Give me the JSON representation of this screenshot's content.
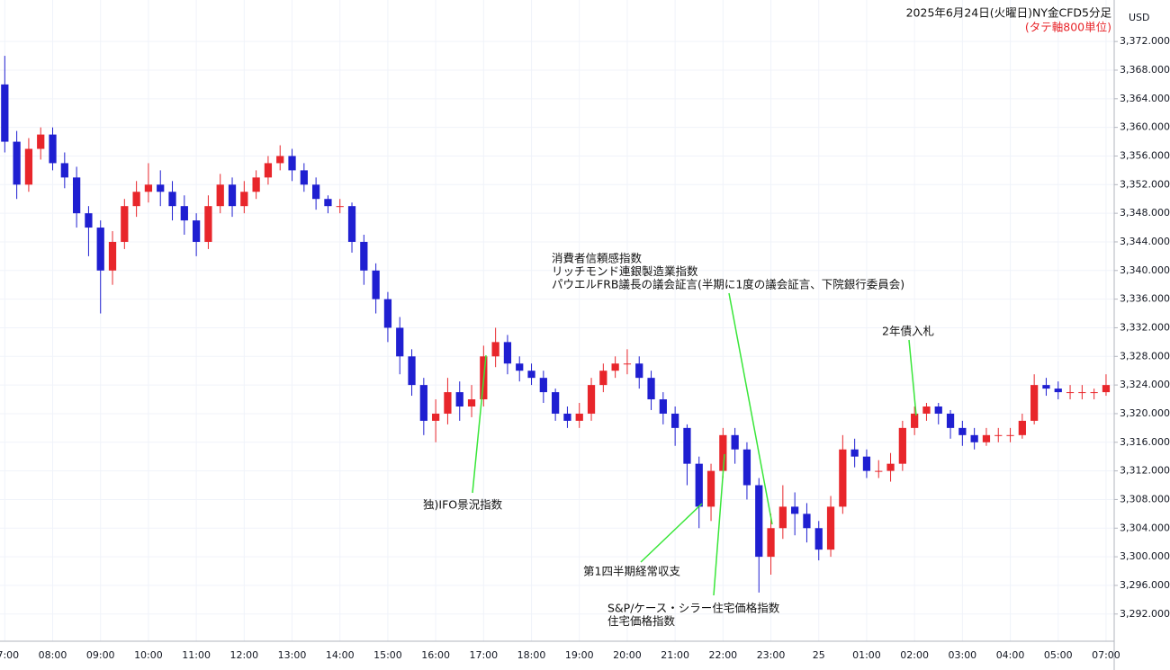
{
  "chart_data": {
    "type": "candlestick",
    "title": "2025年6月24日(火曜日)NY金CFD5分足",
    "subtitle": "(タテ軸800単位)",
    "currency": "USD",
    "up_color": "#e8262b",
    "down_color": "#1f1fd1",
    "annotation_color": "#39e639",
    "grid": true,
    "xlim": [
      -0.1,
      23.17
    ],
    "ylim": [
      3288.2,
      3377.8
    ],
    "xticks": [
      {
        "value": 0,
        "label": "07:00"
      },
      {
        "value": 1,
        "label": "08:00"
      },
      {
        "value": 2,
        "label": "09:00"
      },
      {
        "value": 3,
        "label": "10:00"
      },
      {
        "value": 4,
        "label": "11:00"
      },
      {
        "value": 5,
        "label": "12:00"
      },
      {
        "value": 6,
        "label": "13:00"
      },
      {
        "value": 7,
        "label": "14:00"
      },
      {
        "value": 8,
        "label": "15:00"
      },
      {
        "value": 9,
        "label": "16:00"
      },
      {
        "value": 10,
        "label": "17:00"
      },
      {
        "value": 11,
        "label": "18:00"
      },
      {
        "value": 12,
        "label": "19:00"
      },
      {
        "value": 13,
        "label": "20:00"
      },
      {
        "value": 14,
        "label": "21:00"
      },
      {
        "value": 15,
        "label": "22:00"
      },
      {
        "value": 16,
        "label": "23:00"
      },
      {
        "value": 17,
        "label": "25"
      },
      {
        "value": 18,
        "label": "01:00"
      },
      {
        "value": 19,
        "label": "02:00"
      },
      {
        "value": 20,
        "label": "03:00"
      },
      {
        "value": 21,
        "label": "04:00"
      },
      {
        "value": 22,
        "label": "05:00"
      },
      {
        "value": 23,
        "label": "07:00"
      }
    ],
    "yticks": [
      {
        "value": 3292,
        "label": "3,292.000"
      },
      {
        "value": 3296,
        "label": "3,296.000"
      },
      {
        "value": 3300,
        "label": "3,300.000"
      },
      {
        "value": 3304,
        "label": "3,304.000"
      },
      {
        "value": 3308,
        "label": "3,308.000"
      },
      {
        "value": 3312,
        "label": "3,312.000"
      },
      {
        "value": 3316,
        "label": "3,316.000"
      },
      {
        "value": 3320,
        "label": "3,320.000"
      },
      {
        "value": 3324,
        "label": "3,324.000"
      },
      {
        "value": 3328,
        "label": "3,328.000"
      },
      {
        "value": 3332,
        "label": "3,332.000"
      },
      {
        "value": 3336,
        "label": "3,336.000"
      },
      {
        "value": 3340,
        "label": "3,340.000"
      },
      {
        "value": 3344,
        "label": "3,344.000"
      },
      {
        "value": 3348,
        "label": "3,348.000"
      },
      {
        "value": 3352,
        "label": "3,352.000"
      },
      {
        "value": 3356,
        "label": "3,356.000"
      },
      {
        "value": 3360,
        "label": "3,360.000"
      },
      {
        "value": 3364,
        "label": "3,364.000"
      },
      {
        "value": 3368,
        "label": "3,368.000"
      },
      {
        "value": 3372,
        "label": "3,372.000"
      }
    ],
    "x": [
      0,
      0.25,
      0.5,
      0.75,
      1,
      1.25,
      1.5,
      1.75,
      2,
      2.25,
      2.5,
      2.75,
      3,
      3.25,
      3.5,
      3.75,
      4,
      4.25,
      4.5,
      4.75,
      5,
      5.25,
      5.5,
      5.75,
      6,
      6.25,
      6.5,
      6.75,
      7,
      7.25,
      7.5,
      7.75,
      8,
      8.25,
      8.5,
      8.75,
      9,
      9.25,
      9.5,
      9.75,
      10,
      10.25,
      10.5,
      10.75,
      11,
      11.25,
      11.5,
      11.75,
      12,
      12.25,
      12.5,
      12.75,
      13,
      13.25,
      13.5,
      13.75,
      14,
      14.25,
      14.5,
      14.75,
      15,
      15.25,
      15.5,
      15.75,
      16,
      16.25,
      16.5,
      16.75,
      17,
      17.25,
      17.5,
      17.75,
      18,
      18.25,
      18.5,
      18.75,
      19,
      19.25,
      19.5,
      19.75,
      20,
      20.25,
      20.5,
      20.75,
      21,
      21.25,
      21.5,
      21.75,
      22,
      22.25,
      22.5,
      22.75,
      23
    ],
    "open": [
      3366,
      3358,
      3352,
      3357,
      3359,
      3355,
      3353,
      3348,
      3346,
      3340,
      3344,
      3349,
      3351,
      3352,
      3351,
      3349,
      3347,
      3344,
      3349,
      3352,
      3349,
      3351,
      3353,
      3355,
      3356,
      3354,
      3352,
      3350,
      3349,
      3349,
      3344,
      3340,
      3336,
      3332,
      3328,
      3324,
      3319,
      3320,
      3323,
      3321,
      3322,
      3328,
      3330,
      3327,
      3326,
      3325,
      3323,
      3320,
      3319,
      3320,
      3324,
      3326,
      3327,
      3327,
      3325,
      3322,
      3320,
      3318,
      3313,
      3307,
      3312,
      3317,
      3315,
      3310,
      3300,
      3304,
      3307,
      3306,
      3304,
      3301,
      3307,
      3315,
      3314,
      3312,
      3312,
      3313,
      3318,
      3320,
      3321,
      3320,
      3318,
      3317,
      3316,
      3317,
      3317,
      3317,
      3319,
      3324,
      3323.5,
      3323,
      3323,
      3323,
      3323
    ],
    "high": [
      3370,
      3359.5,
      3358.5,
      3360,
      3360,
      3356.5,
      3354.5,
      3349,
      3347,
      3345.5,
      3350,
      3352.5,
      3355,
      3354,
      3352.5,
      3350.5,
      3348,
      3350.5,
      3353.5,
      3353,
      3352.5,
      3354,
      3356,
      3357.5,
      3357,
      3355,
      3353,
      3350.5,
      3350,
      3349.5,
      3345,
      3341,
      3337,
      3333.5,
      3329,
      3325,
      3322,
      3325,
      3324.5,
      3324,
      3329.5,
      3332,
      3331,
      3328,
      3327,
      3326,
      3323.5,
      3321,
      3321.5,
      3325,
      3327,
      3328,
      3329,
      3328,
      3326,
      3323,
      3321,
      3318.5,
      3314,
      3313,
      3318,
      3318,
      3316,
      3311,
      3306,
      3310,
      3309,
      3307.5,
      3305,
      3308.5,
      3317,
      3316.5,
      3315,
      3313.5,
      3314.5,
      3319,
      3321,
      3321.5,
      3321.5,
      3320.5,
      3319,
      3318,
      3318,
      3318,
      3318,
      3320,
      3325.5,
      3325,
      3324.5,
      3324,
      3324,
      3323.5,
      3325.5
    ],
    "low": [
      3356.5,
      3350,
      3351,
      3355.5,
      3354,
      3351.5,
      3346,
      3342,
      3334,
      3338,
      3343,
      3347.5,
      3349.5,
      3349,
      3347,
      3345,
      3342,
      3343,
      3348,
      3347.5,
      3348,
      3350,
      3352,
      3354,
      3352.5,
      3351,
      3348.5,
      3348,
      3348,
      3342.5,
      3338,
      3334,
      3330,
      3325.5,
      3322.5,
      3317,
      3316,
      3318.5,
      3319,
      3319.5,
      3321,
      3326.5,
      3325.5,
      3324.5,
      3324,
      3321.5,
      3319,
      3318,
      3318,
      3319,
      3323,
      3325,
      3325.5,
      3323.5,
      3320.5,
      3318.5,
      3315.5,
      3310,
      3304,
      3305,
      3311,
      3313,
      3308,
      3295,
      3297.5,
      3302.5,
      3303,
      3302,
      3299.5,
      3300,
      3306,
      3312.5,
      3311,
      3311,
      3310.5,
      3312,
      3317,
      3319,
      3318.5,
      3316.5,
      3315.5,
      3315,
      3315.5,
      3316,
      3316,
      3316.5,
      3318.5,
      3322.5,
      3322,
      3322,
      3322,
      3322,
      3322.5
    ],
    "close": [
      3358,
      3352,
      3357,
      3359,
      3355,
      3353,
      3348,
      3346,
      3340,
      3344,
      3349,
      3351,
      3352,
      3351,
      3349,
      3347,
      3344,
      3349,
      3352,
      3349,
      3351,
      3353,
      3355,
      3356,
      3354,
      3352,
      3350,
      3349,
      3349,
      3344,
      3340,
      3336,
      3332,
      3328,
      3324,
      3319,
      3320,
      3323,
      3321,
      3322,
      3328,
      3330,
      3327,
      3326,
      3325,
      3323,
      3320,
      3319,
      3320,
      3324,
      3326,
      3327,
      3327,
      3325,
      3322,
      3320,
      3318,
      3313,
      3307,
      3312,
      3317,
      3315,
      3310,
      3300,
      3304,
      3307,
      3306,
      3304,
      3301,
      3307,
      3315,
      3314,
      3312,
      3312,
      3313,
      3318,
      3320,
      3321,
      3320,
      3318,
      3317,
      3316,
      3317,
      3317,
      3317,
      3319,
      3324,
      3323.5,
      3323,
      3323,
      3323,
      3323,
      3324
    ],
    "annotations": [
      [
        "消費者信頼感指数",
        "リッチモンド連銀製造業指数",
        "パウエルFRB議長の議会証言(半期に1度の議会証言、下院銀行委員会)"
      ],
      [
        "2年債入札"
      ],
      [
        "独)IFO景況指数"
      ],
      [
        "第1四半期経常収支"
      ],
      [
        "S&P/ケース・シラー住宅価格指数",
        "住宅価格指数"
      ]
    ]
  }
}
